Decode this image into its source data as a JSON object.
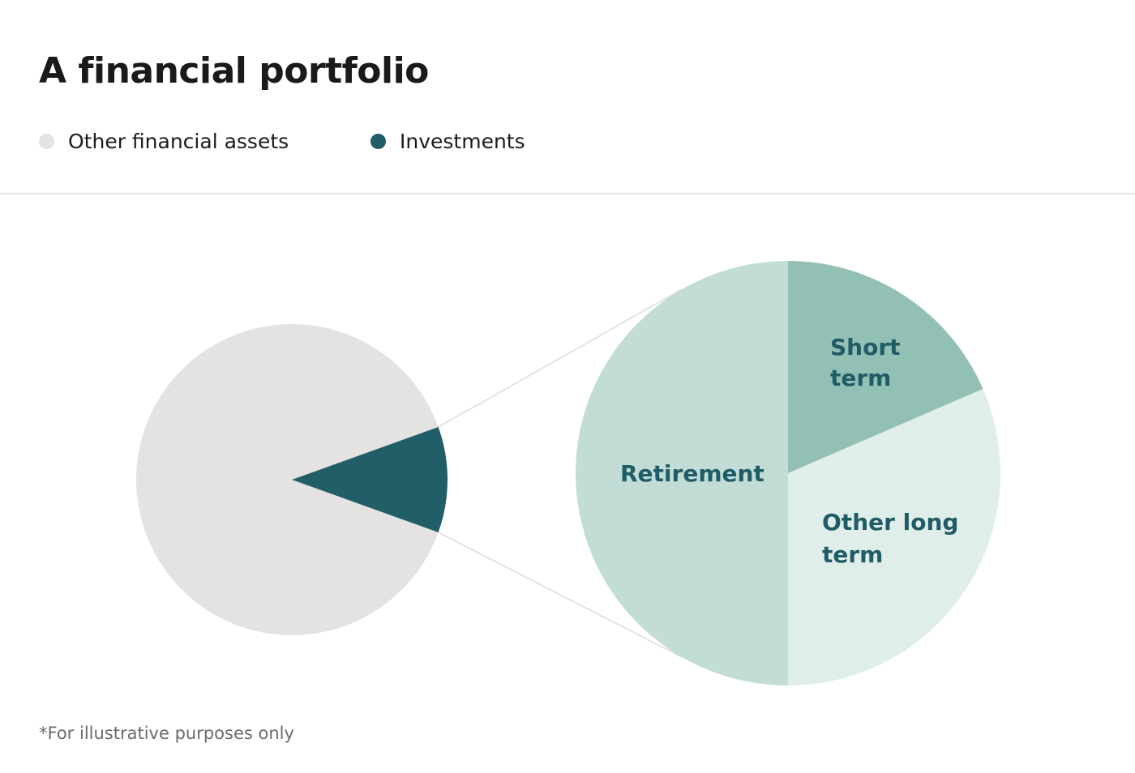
{
  "title": "A financial portfolio",
  "legend": [
    {
      "label": "Other financial assets",
      "color": "#e5e3e1"
    },
    {
      "label": "Investments",
      "color": "#215e67"
    }
  ],
  "footnote": "*For illustrative purposes only",
  "colors": {
    "connector": "#e3e3e3",
    "label_text": "#1f5c66"
  },
  "chart_data": [
    {
      "type": "pie",
      "title": "",
      "slices": [
        {
          "name": "Other financial assets",
          "value": 0.89,
          "color": "#e5e3e1"
        },
        {
          "name": "Investments",
          "value": 0.11,
          "color": "#215e67"
        }
      ]
    },
    {
      "type": "pie",
      "title": "",
      "slices": [
        {
          "name": "Short term",
          "label_lines": [
            "Short",
            "term"
          ],
          "value": 0.185,
          "color": "#93c0b5"
        },
        {
          "name": "Other long term",
          "label_lines": [
            "Other long",
            "term"
          ],
          "value": 0.315,
          "color": "#e0eeea"
        },
        {
          "name": "Retirement",
          "label_lines": [
            "Retirement"
          ],
          "value": 0.5,
          "color": "#c2ddd6"
        }
      ]
    }
  ]
}
